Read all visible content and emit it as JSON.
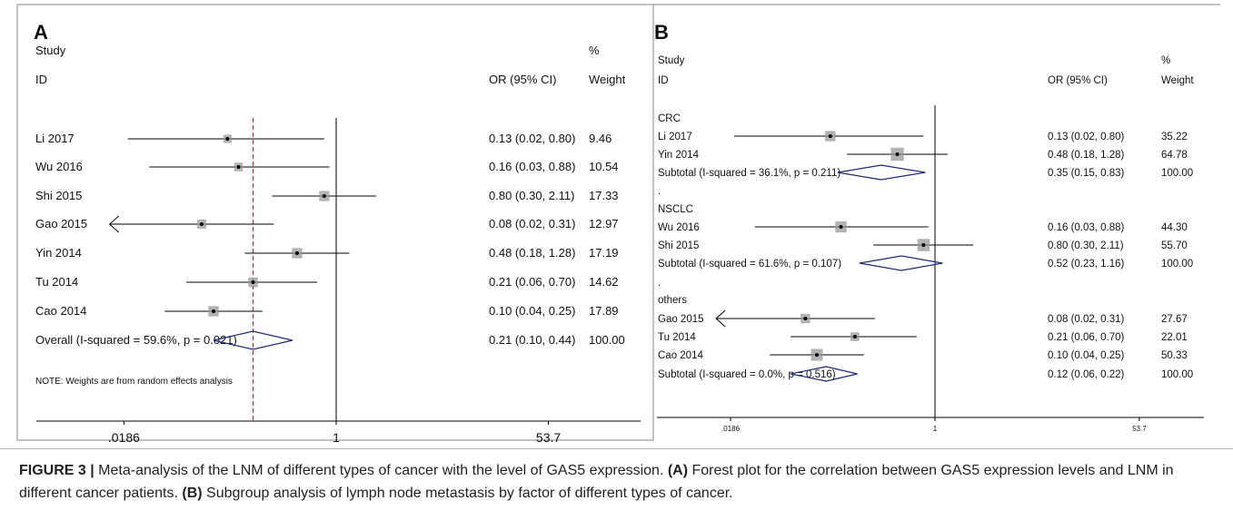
{
  "colors": {
    "marker_box": "#9a9a9a",
    "diamond": "#1f2a7a",
    "overall_line": "#b22222",
    "frame": "#8a8a8a",
    "line": "#000000"
  },
  "chart_data": [
    {
      "type": "forest",
      "panel_label": "A",
      "header": {
        "study_line1": "Study",
        "study_line2": "ID",
        "or": "OR (95% CI)",
        "weight_line1": "%",
        "weight_line2": "Weight"
      },
      "log_scale": true,
      "xlim": [
        0.0186,
        53.7
      ],
      "xticks": [
        ".0186",
        "1",
        "53.7"
      ],
      "xtick_values": [
        0.0186,
        1,
        53.7
      ],
      "reference_or": 1,
      "rows": [
        {
          "kind": "study",
          "label": "Li 2017",
          "or": 0.13,
          "lo": 0.02,
          "hi": 0.8,
          "or_text": "0.13 (0.02, 0.80)",
          "weight": "9.46"
        },
        {
          "kind": "study",
          "label": "Wu 2016",
          "or": 0.16,
          "lo": 0.03,
          "hi": 0.88,
          "or_text": "0.16 (0.03, 0.88)",
          "weight": "10.54"
        },
        {
          "kind": "study",
          "label": "Shi 2015",
          "or": 0.8,
          "lo": 0.3,
          "hi": 2.11,
          "or_text": "0.80 (0.30, 2.11)",
          "weight": "17.33"
        },
        {
          "kind": "study",
          "label": "Gao 2015",
          "or": 0.08,
          "lo": 0.02,
          "hi": 0.31,
          "or_text": "0.08 (0.02, 0.31)",
          "weight": "12.97",
          "arrow_left": true
        },
        {
          "kind": "study",
          "label": "Yin 2014",
          "or": 0.48,
          "lo": 0.18,
          "hi": 1.28,
          "or_text": "0.48 (0.18, 1.28)",
          "weight": "17.19"
        },
        {
          "kind": "study",
          "label": "Tu 2014",
          "or": 0.21,
          "lo": 0.06,
          "hi": 0.7,
          "or_text": "0.21 (0.06, 0.70)",
          "weight": "14.62"
        },
        {
          "kind": "study",
          "label": "Cao 2014",
          "or": 0.1,
          "lo": 0.04,
          "hi": 0.25,
          "or_text": "0.10 (0.04, 0.25)",
          "weight": "17.89"
        },
        {
          "kind": "overall",
          "label": "Overall  (I-squared = 59.6%, p = 0.021)",
          "or": 0.21,
          "lo": 0.1,
          "hi": 0.44,
          "or_text": "0.21 (0.10, 0.44)",
          "weight": "100.00"
        }
      ],
      "overall_or": 0.21,
      "note": "NOTE: Weights are from random effects analysis"
    },
    {
      "type": "forest",
      "panel_label": "B",
      "header": {
        "study_line1": "Study",
        "study_line2": "ID",
        "or": "OR (95% CI)",
        "weight_line1": "%",
        "weight_line2": "Weight"
      },
      "log_scale": true,
      "xlim": [
        0.0186,
        53.7
      ],
      "xticks": [
        ".0186",
        "1",
        "53.7"
      ],
      "xtick_values": [
        0.0186,
        1,
        53.7
      ],
      "reference_or": 1,
      "rows": [
        {
          "kind": "group",
          "label": "CRC"
        },
        {
          "kind": "study",
          "label": "Li 2017",
          "or": 0.13,
          "lo": 0.02,
          "hi": 0.8,
          "or_text": "0.13 (0.02, 0.80)",
          "weight": "35.22"
        },
        {
          "kind": "study",
          "label": "Yin 2014",
          "or": 0.48,
          "lo": 0.18,
          "hi": 1.28,
          "or_text": "0.48 (0.18, 1.28)",
          "weight": "64.78"
        },
        {
          "kind": "subtotal",
          "label": "Subtotal  (I-squared = 36.1%, p = 0.211)",
          "or": 0.35,
          "lo": 0.15,
          "hi": 0.83,
          "or_text": "0.35 (0.15, 0.83)",
          "weight": "100.00"
        },
        {
          "kind": "dot",
          "label": "."
        },
        {
          "kind": "group",
          "label": "NSCLC"
        },
        {
          "kind": "study",
          "label": "Wu 2016",
          "or": 0.16,
          "lo": 0.03,
          "hi": 0.88,
          "or_text": "0.16 (0.03, 0.88)",
          "weight": "44.30"
        },
        {
          "kind": "study",
          "label": "Shi 2015",
          "or": 0.8,
          "lo": 0.3,
          "hi": 2.11,
          "or_text": "0.80 (0.30, 2.11)",
          "weight": "55.70"
        },
        {
          "kind": "subtotal",
          "label": "Subtotal  (I-squared = 61.6%, p = 0.107)",
          "or": 0.52,
          "lo": 0.23,
          "hi": 1.16,
          "or_text": "0.52 (0.23, 1.16)",
          "weight": "100.00"
        },
        {
          "kind": "dot",
          "label": "."
        },
        {
          "kind": "group",
          "label": "others"
        },
        {
          "kind": "study",
          "label": "Gao 2015",
          "or": 0.08,
          "lo": 0.02,
          "hi": 0.31,
          "or_text": "0.08 (0.02, 0.31)",
          "weight": "27.67",
          "arrow_left": true
        },
        {
          "kind": "study",
          "label": "Tu 2014",
          "or": 0.21,
          "lo": 0.06,
          "hi": 0.7,
          "or_text": "0.21 (0.06, 0.70)",
          "weight": "22.01"
        },
        {
          "kind": "study",
          "label": "Cao 2014",
          "or": 0.1,
          "lo": 0.04,
          "hi": 0.25,
          "or_text": "0.10 (0.04, 0.25)",
          "weight": "50.33"
        },
        {
          "kind": "subtotal",
          "label": "Subtotal  (I-squared = 0.0%, p = 0.516)",
          "or": 0.12,
          "lo": 0.06,
          "hi": 0.22,
          "or_text": "0.12 (0.06, 0.22)",
          "weight": "100.00"
        }
      ]
    }
  ],
  "caption": {
    "figure_label": "FIGURE 3 |",
    "text_1": " Meta-analysis of the LNM of different types of cancer with the level of GAS5 expression. ",
    "label_a": "(A)",
    "text_2": " Forest plot for the correlation between GAS5 expression levels and LNM in different cancer patients. ",
    "label_b": "(B)",
    "text_3": " Subgroup analysis of lymph node metastasis by factor of different types of cancer."
  }
}
